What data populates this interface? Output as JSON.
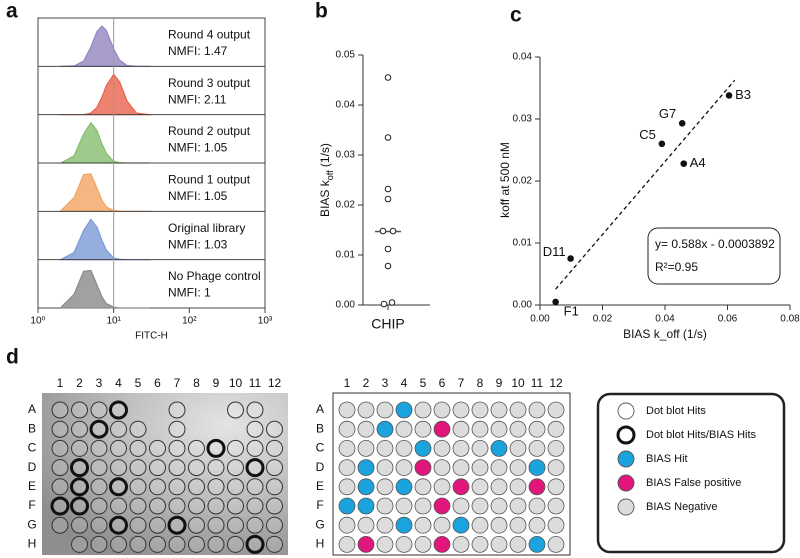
{
  "panel_labels": [
    "a",
    "b",
    "c",
    "d"
  ],
  "chart_data": [
    {
      "type": "ridgeline",
      "xlabel": "FITC-H",
      "log_x": true,
      "xlim": [
        1,
        1000
      ],
      "xticks": [
        {
          "value": 1,
          "label": "10⁰"
        },
        {
          "value": 10,
          "label": "10¹"
        },
        {
          "value": 100,
          "label": "10²"
        },
        {
          "value": 1000,
          "label": "10³"
        }
      ],
      "reference_x": 10,
      "ylim": [
        0,
        1.2
      ],
      "x": [
        2,
        3,
        4,
        5,
        6,
        7,
        8,
        10,
        12,
        15,
        20,
        30
      ],
      "series": [
        {
          "name": "Round 4 output",
          "annotation": "NMFI: 1.47",
          "color": "#9485c2",
          "values": [
            0,
            0.01,
            0.13,
            0.48,
            0.86,
            1,
            0.89,
            0.43,
            0.15,
            0.02,
            0,
            0
          ]
        },
        {
          "name": "Round 3 output",
          "annotation": "NMFI: 2.11",
          "color": "#e8634c",
          "values": [
            0,
            0,
            0,
            0.04,
            0.18,
            0.43,
            0.72,
            1,
            0.81,
            0.34,
            0.04,
            0
          ]
        },
        {
          "name": "Round 2 output",
          "annotation": "NMFI: 1.05",
          "color": "#86bd6e",
          "values": [
            0,
            0.18,
            0.72,
            1,
            0.81,
            0.48,
            0.24,
            0.04,
            0.01,
            0,
            0,
            0
          ]
        },
        {
          "name": "Round 1 output",
          "annotation": "NMFI: 1.05",
          "color": "#f2a463",
          "values": [
            0.01,
            0.34,
            0.91,
            0.93,
            0.58,
            0.28,
            0.11,
            0.02,
            0,
            0,
            0,
            0
          ]
        },
        {
          "name": "Original library",
          "annotation": "NMFI: 1.03",
          "color": "#7a9ad6",
          "values": [
            0,
            0.18,
            0.72,
            1,
            0.81,
            0.48,
            0.24,
            0.04,
            0.01,
            0,
            0,
            0
          ]
        },
        {
          "name": "No Phage control",
          "annotation": "NMFI: 1",
          "color": "#8a8a8a",
          "values": [
            0.01,
            0.34,
            0.91,
            0.93,
            0.58,
            0.28,
            0.11,
            0.02,
            0,
            0,
            0,
            0
          ]
        }
      ]
    },
    {
      "type": "strip",
      "ylabel_parts": [
        "BIAS k",
        "off",
        " (1/s)"
      ],
      "categories": [
        "CHIP"
      ],
      "values": [
        0.0455,
        0.0335,
        0.0232,
        0.0212,
        0.0148,
        0.0148,
        0.0112,
        0.0078,
        0.0002,
        0.0005
      ],
      "median": 0.0147,
      "ylim": [
        0,
        0.05
      ],
      "yticks": [
        {
          "value": 0,
          "label": "0.00"
        },
        {
          "value": 0.01,
          "label": "0.01"
        },
        {
          "value": 0.02,
          "label": "0.02"
        },
        {
          "value": 0.03,
          "label": "0.03"
        },
        {
          "value": 0.04,
          "label": "0.04"
        },
        {
          "value": 0.05,
          "label": "0.05"
        }
      ]
    },
    {
      "type": "scatter",
      "xlabel": "BIAS k_off (1/s)",
      "ylabel": "koff at 500 nM",
      "labels": [
        "F1",
        "D11",
        "C5",
        "G7",
        "A4",
        "B3"
      ],
      "x": [
        0.005,
        0.0098,
        0.039,
        0.0455,
        0.046,
        0.0605
      ],
      "values": [
        0.0005,
        0.0075,
        0.026,
        0.0293,
        0.0228,
        0.0338
      ],
      "fit": {
        "slope": 0.588,
        "intercept": -0.0003892,
        "label": "y= 0.588x - 0.0003892",
        "r2_label": "R²=0.95"
      },
      "xlim": [
        0,
        0.08
      ],
      "ylim": [
        0,
        0.04
      ],
      "xticks": [
        {
          "value": 0,
          "label": "0.00"
        },
        {
          "value": 0.02,
          "label": "0.02"
        },
        {
          "value": 0.04,
          "label": "0.04"
        },
        {
          "value": 0.06,
          "label": "0.06"
        },
        {
          "value": 0.08,
          "label": "0.08"
        }
      ],
      "yticks": [
        {
          "value": 0,
          "label": "0.00"
        },
        {
          "value": 0.01,
          "label": "0.01"
        },
        {
          "value": 0.02,
          "label": "0.02"
        },
        {
          "value": 0.03,
          "label": "0.03"
        },
        {
          "value": 0.04,
          "label": "0.04"
        }
      ]
    }
  ],
  "plates": {
    "columns": [
      "1",
      "2",
      "3",
      "4",
      "5",
      "6",
      "7",
      "8",
      "9",
      "10",
      "11",
      "12"
    ],
    "rows": [
      "A",
      "B",
      "C",
      "D",
      "E",
      "F",
      "G",
      "H"
    ],
    "legend": [
      {
        "name": "Dot blot Hits",
        "color": "#ffffff"
      },
      {
        "name": "Dot blot Hits/BIAS Hits",
        "color": "#ffffff",
        "bold": true
      },
      {
        "name": "BIAS Hit",
        "color": "#1ba3dd"
      },
      {
        "name": "BIAS False positive",
        "color": "#e0167c"
      },
      {
        "name": "BIAS Negative",
        "color": "#dcdcdc"
      }
    ],
    "dot_blot": [
      [
        0,
        0,
        0,
        1,
        null,
        null,
        0,
        null,
        null,
        0,
        0,
        null
      ],
      [
        0,
        0,
        1,
        0,
        0,
        null,
        0,
        null,
        null,
        null,
        0,
        0
      ],
      [
        0,
        0,
        0,
        0,
        0,
        0,
        0,
        0,
        1,
        0,
        0,
        0
      ],
      [
        0,
        1,
        0,
        0,
        0,
        0,
        0,
        0,
        0,
        0,
        1,
        0
      ],
      [
        0,
        1,
        0,
        1,
        0,
        0,
        0,
        0,
        0,
        0,
        0,
        0
      ],
      [
        1,
        1,
        0,
        0,
        0,
        0,
        0,
        0,
        0,
        0,
        0,
        0
      ],
      [
        0,
        0,
        0,
        1,
        0,
        0,
        1,
        0,
        0,
        0,
        0,
        0
      ],
      [
        null,
        0,
        0,
        0,
        0,
        0,
        0,
        0,
        0,
        0,
        1,
        0
      ]
    ],
    "bias": [
      [
        4,
        4,
        4,
        2,
        4,
        4,
        4,
        4,
        4,
        4,
        4,
        4
      ],
      [
        4,
        4,
        2,
        4,
        4,
        3,
        4,
        4,
        4,
        4,
        4,
        4
      ],
      [
        4,
        4,
        4,
        4,
        2,
        4,
        4,
        4,
        2,
        4,
        4,
        4
      ],
      [
        4,
        2,
        4,
        4,
        3,
        4,
        4,
        4,
        4,
        4,
        2,
        4
      ],
      [
        4,
        2,
        4,
        2,
        4,
        4,
        3,
        4,
        4,
        4,
        3,
        4
      ],
      [
        2,
        2,
        4,
        4,
        4,
        3,
        4,
        4,
        4,
        4,
        4,
        4
      ],
      [
        4,
        4,
        4,
        2,
        4,
        4,
        2,
        4,
        4,
        4,
        4,
        4
      ],
      [
        4,
        3,
        4,
        4,
        4,
        3,
        4,
        4,
        4,
        4,
        2,
        4
      ]
    ]
  }
}
